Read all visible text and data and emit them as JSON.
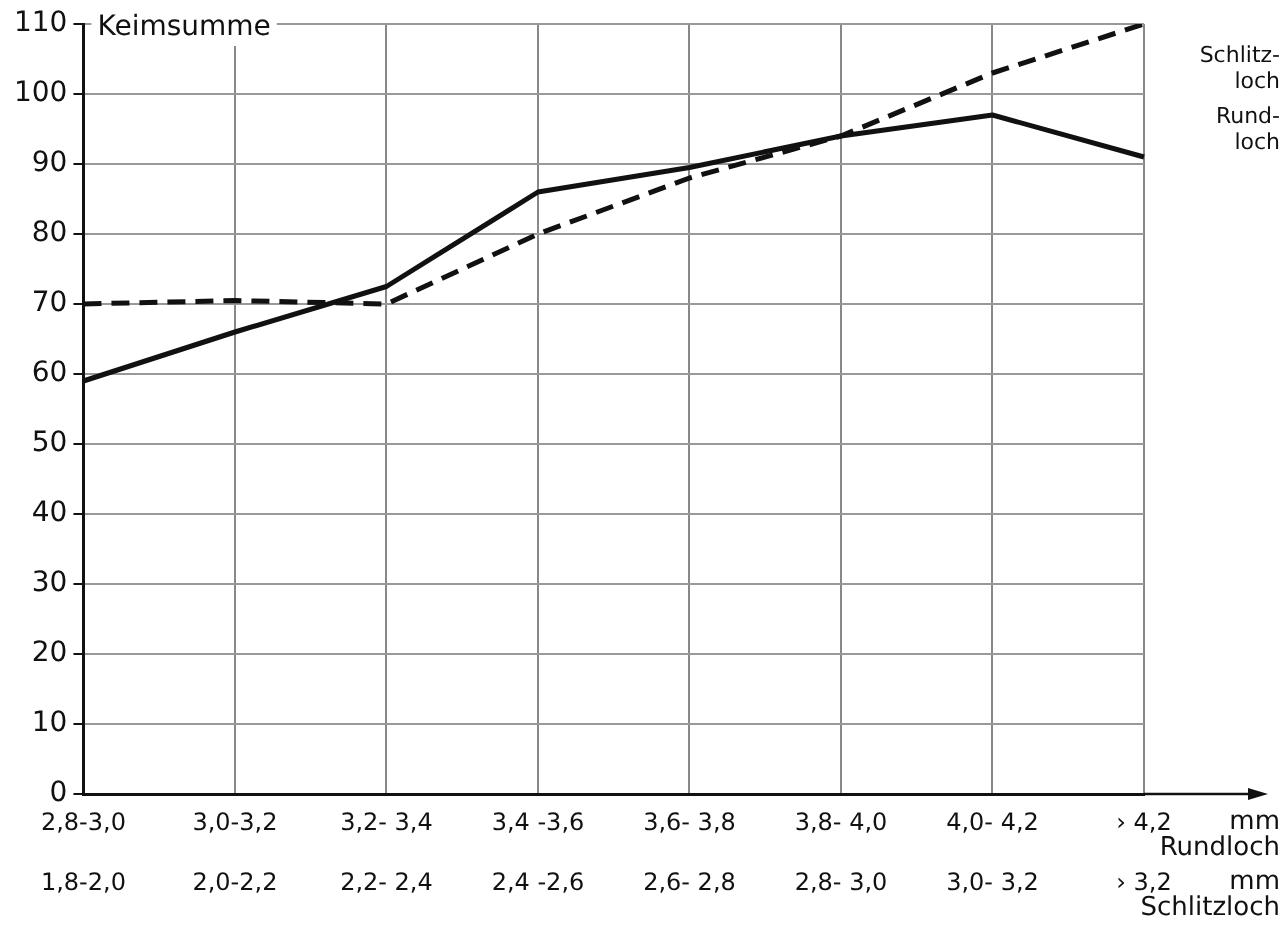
{
  "chart_data": {
    "type": "line",
    "ylabel": "Keimsumme",
    "categories": [
      "2,8-3,0\n1,8-2,0",
      "3,0-3,2\n2,0-2,2",
      "3,2- 3,4\n2,2- 2,4",
      "3,4 -3,6\n2,4 -2,6",
      "3,6- 3,8\n2,6- 2,8",
      "3,8- 4,0\n2,8- 3,0",
      "4,0- 4,2\n3,0- 3,2",
      "› 4,2\n› 3,2"
    ],
    "series": [
      {
        "name": "Schlitz-\nloch",
        "color": "#111111",
        "line_style": "dashed",
        "values": [
          70,
          70.5,
          70,
          80,
          88,
          94,
          103,
          110
        ]
      },
      {
        "name": "Rund-\nloch",
        "color": "#111111",
        "line_style": "solid",
        "values": [
          59,
          66,
          72.5,
          86,
          89.5,
          94,
          97,
          91
        ]
      }
    ],
    "annotations": [
      "mm\nRundloch",
      "mm\nSchlitzloch"
    ],
    "ylim": [
      0,
      110
    ],
    "yticks": [
      0,
      10,
      20,
      30,
      40,
      50,
      60,
      70,
      80,
      90,
      100,
      110
    ],
    "grid": true,
    "legend": false,
    "marker": "none"
  }
}
